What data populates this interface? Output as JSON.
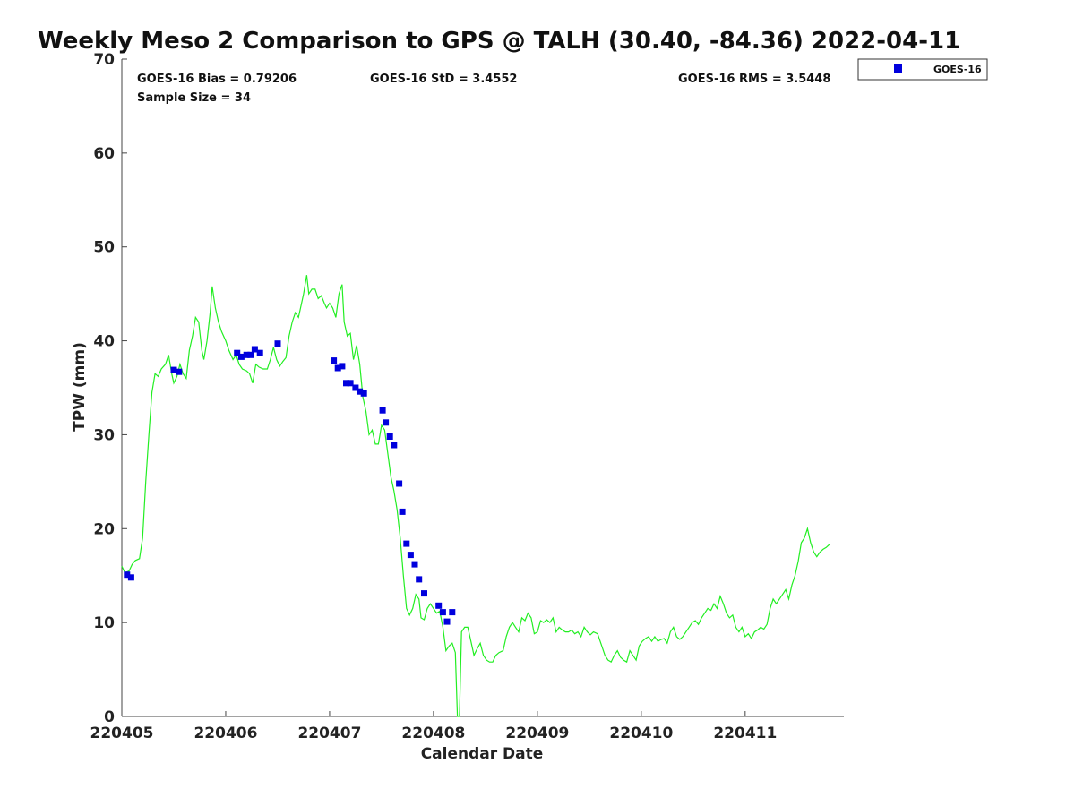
{
  "chart_data": {
    "type": "scatter",
    "title": "Weekly Meso 2 Comparison to GPS @ TALH (30.40, -84.36) 2022-04-11",
    "xlabel": "Calendar Date",
    "ylabel": "TPW (mm)",
    "xlim": [
      220405,
      220411.95
    ],
    "ylim": [
      0,
      70
    ],
    "grid": false,
    "legend_position": "top-right",
    "x_ticks": [
      {
        "value": 220405,
        "label": "220405"
      },
      {
        "value": 220406,
        "label": "220406"
      },
      {
        "value": 220407,
        "label": "220407"
      },
      {
        "value": 220408,
        "label": "220408"
      },
      {
        "value": 220409,
        "label": "220409"
      },
      {
        "value": 220410,
        "label": "220410"
      },
      {
        "value": 220411,
        "label": "220411"
      }
    ],
    "y_ticks": [
      {
        "value": 0,
        "label": "0"
      },
      {
        "value": 10,
        "label": "10"
      },
      {
        "value": 20,
        "label": "20"
      },
      {
        "value": 30,
        "label": "30"
      },
      {
        "value": 40,
        "label": "40"
      },
      {
        "value": 50,
        "label": "50"
      },
      {
        "value": 60,
        "label": "60"
      },
      {
        "value": 70,
        "label": "70"
      }
    ],
    "stats": {
      "bias": "GOES-16 Bias = 0.79206",
      "std": "GOES-16 StD = 3.4552",
      "rms": "GOES-16 RMS = 3.5448",
      "sample_size": "Sample Size = 34"
    },
    "series": [
      {
        "name": "GOES-16",
        "kind": "scatter",
        "marker": "square",
        "color": "#0000dd",
        "points": [
          [
            220405.05,
            15.1
          ],
          [
            220405.09,
            14.8
          ],
          [
            220405.5,
            36.9
          ],
          [
            220405.55,
            36.7
          ],
          [
            220406.11,
            38.7
          ],
          [
            220406.15,
            38.3
          ],
          [
            220406.2,
            38.5
          ],
          [
            220406.24,
            38.5
          ],
          [
            220406.28,
            39.1
          ],
          [
            220406.33,
            38.7
          ],
          [
            220406.5,
            39.7
          ],
          [
            220407.04,
            37.9
          ],
          [
            220407.08,
            37.1
          ],
          [
            220407.12,
            37.3
          ],
          [
            220407.16,
            35.5
          ],
          [
            220407.2,
            35.5
          ],
          [
            220407.25,
            35.0
          ],
          [
            220407.29,
            34.6
          ],
          [
            220407.33,
            34.4
          ],
          [
            220407.51,
            32.6
          ],
          [
            220407.54,
            31.3
          ],
          [
            220407.58,
            29.8
          ],
          [
            220407.62,
            28.9
          ],
          [
            220407.67,
            24.8
          ],
          [
            220407.7,
            21.8
          ],
          [
            220407.74,
            18.4
          ],
          [
            220407.78,
            17.2
          ],
          [
            220407.82,
            16.2
          ],
          [
            220407.86,
            14.6
          ],
          [
            220407.91,
            13.1
          ],
          [
            220408.05,
            11.8
          ],
          [
            220408.09,
            11.1
          ],
          [
            220408.13,
            10.1
          ],
          [
            220408.18,
            11.1
          ]
        ]
      },
      {
        "kind": "line",
        "color": "#22ee22",
        "points": [
          [
            220405.0,
            16.0
          ],
          [
            220405.03,
            15.3
          ],
          [
            220405.07,
            15.5
          ],
          [
            220405.1,
            16.2
          ],
          [
            220405.13,
            16.6
          ],
          [
            220405.17,
            16.8
          ],
          [
            220405.2,
            19.0
          ],
          [
            220405.23,
            25.0
          ],
          [
            220405.26,
            30.0
          ],
          [
            220405.29,
            34.5
          ],
          [
            220405.32,
            36.5
          ],
          [
            220405.35,
            36.2
          ],
          [
            220405.38,
            37.0
          ],
          [
            220405.42,
            37.5
          ],
          [
            220405.45,
            38.5
          ],
          [
            220405.48,
            36.5
          ],
          [
            220405.5,
            35.5
          ],
          [
            220405.53,
            36.2
          ],
          [
            220405.56,
            37.5
          ],
          [
            220405.59,
            36.5
          ],
          [
            220405.62,
            36.0
          ],
          [
            220405.65,
            39.0
          ],
          [
            220405.68,
            40.5
          ],
          [
            220405.71,
            42.5
          ],
          [
            220405.74,
            42.0
          ],
          [
            220405.77,
            39.0
          ],
          [
            220405.79,
            38.0
          ],
          [
            220405.82,
            40.0
          ],
          [
            220405.85,
            43.0
          ],
          [
            220405.87,
            45.8
          ],
          [
            220405.9,
            43.5
          ],
          [
            220405.93,
            42.0
          ],
          [
            220405.96,
            41.0
          ],
          [
            220406.0,
            40.0
          ],
          [
            220406.03,
            39.0
          ],
          [
            220406.07,
            38.0
          ],
          [
            220406.1,
            38.5
          ],
          [
            220406.13,
            37.5
          ],
          [
            220406.16,
            37.0
          ],
          [
            220406.2,
            36.8
          ],
          [
            220406.23,
            36.5
          ],
          [
            220406.26,
            35.5
          ],
          [
            220406.29,
            37.5
          ],
          [
            220406.32,
            37.2
          ],
          [
            220406.36,
            37.0
          ],
          [
            220406.4,
            37.0
          ],
          [
            220406.43,
            38.0
          ],
          [
            220406.46,
            39.3
          ],
          [
            220406.49,
            38.0
          ],
          [
            220406.52,
            37.3
          ],
          [
            220406.55,
            37.8
          ],
          [
            220406.58,
            38.2
          ],
          [
            220406.61,
            40.5
          ],
          [
            220406.64,
            42.0
          ],
          [
            220406.67,
            43.0
          ],
          [
            220406.7,
            42.5
          ],
          [
            220406.72,
            43.5
          ],
          [
            220406.75,
            45.0
          ],
          [
            220406.78,
            47.0
          ],
          [
            220406.8,
            45.0
          ],
          [
            220406.83,
            45.5
          ],
          [
            220406.86,
            45.5
          ],
          [
            220406.89,
            44.5
          ],
          [
            220406.92,
            44.8
          ],
          [
            220406.95,
            44.0
          ],
          [
            220406.97,
            43.5
          ],
          [
            220407.0,
            44.0
          ],
          [
            220407.03,
            43.5
          ],
          [
            220407.06,
            42.5
          ],
          [
            220407.09,
            45.0
          ],
          [
            220407.12,
            46.0
          ],
          [
            220407.14,
            42.0
          ],
          [
            220407.17,
            40.5
          ],
          [
            220407.2,
            40.8
          ],
          [
            220407.23,
            38.0
          ],
          [
            220407.26,
            39.5
          ],
          [
            220407.29,
            37.5
          ],
          [
            220407.32,
            34.0
          ],
          [
            220407.35,
            32.5
          ],
          [
            220407.38,
            30.0
          ],
          [
            220407.41,
            30.5
          ],
          [
            220407.44,
            29.0
          ],
          [
            220407.47,
            29.0
          ],
          [
            220407.5,
            31.0
          ],
          [
            220407.53,
            30.5
          ],
          [
            220407.56,
            28.0
          ],
          [
            220407.59,
            25.5
          ],
          [
            220407.62,
            24.0
          ],
          [
            220407.65,
            22.0
          ],
          [
            220407.68,
            19.0
          ],
          [
            220407.71,
            15.0
          ],
          [
            220407.74,
            11.5
          ],
          [
            220407.77,
            10.8
          ],
          [
            220407.8,
            11.5
          ],
          [
            220407.83,
            13.0
          ],
          [
            220407.86,
            12.5
          ],
          [
            220407.88,
            10.5
          ],
          [
            220407.91,
            10.3
          ],
          [
            220407.94,
            11.5
          ],
          [
            220407.97,
            12.0
          ],
          [
            220408.0,
            11.5
          ],
          [
            220408.03,
            11.0
          ],
          [
            220408.06,
            11.2
          ],
          [
            220408.09,
            9.5
          ],
          [
            220408.12,
            7.0
          ],
          [
            220408.15,
            7.5
          ],
          [
            220408.18,
            7.8
          ],
          [
            220408.21,
            6.8
          ],
          [
            220408.23,
            0.0
          ],
          [
            220408.25,
            0.0
          ],
          [
            220408.27,
            9.0
          ],
          [
            220408.3,
            9.5
          ],
          [
            220408.33,
            9.5
          ],
          [
            220408.36,
            8.0
          ],
          [
            220408.39,
            6.5
          ],
          [
            220408.42,
            7.2
          ],
          [
            220408.45,
            7.8
          ],
          [
            220408.48,
            6.5
          ],
          [
            220408.51,
            6.0
          ],
          [
            220408.54,
            5.8
          ],
          [
            220408.57,
            5.8
          ],
          [
            220408.6,
            6.5
          ],
          [
            220408.63,
            6.8
          ],
          [
            220408.67,
            7.0
          ],
          [
            220408.7,
            8.5
          ],
          [
            220408.73,
            9.5
          ],
          [
            220408.76,
            10.0
          ],
          [
            220408.79,
            9.5
          ],
          [
            220408.82,
            9.0
          ],
          [
            220408.85,
            10.5
          ],
          [
            220408.88,
            10.2
          ],
          [
            220408.91,
            11.0
          ],
          [
            220408.94,
            10.5
          ],
          [
            220408.97,
            8.8
          ],
          [
            220409.0,
            9.0
          ],
          [
            220409.03,
            10.2
          ],
          [
            220409.06,
            10.0
          ],
          [
            220409.09,
            10.3
          ],
          [
            220409.12,
            10.0
          ],
          [
            220409.15,
            10.5
          ],
          [
            220409.18,
            9.0
          ],
          [
            220409.21,
            9.5
          ],
          [
            220409.24,
            9.2
          ],
          [
            220409.27,
            9.0
          ],
          [
            220409.3,
            9.0
          ],
          [
            220409.33,
            9.2
          ],
          [
            220409.36,
            8.8
          ],
          [
            220409.39,
            9.0
          ],
          [
            220409.42,
            8.5
          ],
          [
            220409.45,
            9.5
          ],
          [
            220409.48,
            9.0
          ],
          [
            220409.51,
            8.7
          ],
          [
            220409.54,
            9.0
          ],
          [
            220409.58,
            8.8
          ],
          [
            220409.62,
            7.5
          ],
          [
            220409.65,
            6.5
          ],
          [
            220409.68,
            6.0
          ],
          [
            220409.71,
            5.8
          ],
          [
            220409.74,
            6.5
          ],
          [
            220409.77,
            7.0
          ],
          [
            220409.8,
            6.3
          ],
          [
            220409.83,
            6.0
          ],
          [
            220409.86,
            5.8
          ],
          [
            220409.89,
            7.0
          ],
          [
            220409.92,
            6.5
          ],
          [
            220409.95,
            6.0
          ],
          [
            220409.98,
            7.5
          ],
          [
            220410.01,
            8.0
          ],
          [
            220410.04,
            8.3
          ],
          [
            220410.07,
            8.5
          ],
          [
            220410.1,
            8.0
          ],
          [
            220410.13,
            8.5
          ],
          [
            220410.16,
            8.0
          ],
          [
            220410.19,
            8.2
          ],
          [
            220410.22,
            8.3
          ],
          [
            220410.25,
            7.8
          ],
          [
            220410.28,
            9.0
          ],
          [
            220410.31,
            9.5
          ],
          [
            220410.34,
            8.5
          ],
          [
            220410.37,
            8.2
          ],
          [
            220410.4,
            8.5
          ],
          [
            220410.43,
            9.0
          ],
          [
            220410.46,
            9.5
          ],
          [
            220410.49,
            10.0
          ],
          [
            220410.52,
            10.2
          ],
          [
            220410.55,
            9.8
          ],
          [
            220410.58,
            10.5
          ],
          [
            220410.61,
            11.0
          ],
          [
            220410.64,
            11.5
          ],
          [
            220410.67,
            11.3
          ],
          [
            220410.7,
            12.0
          ],
          [
            220410.73,
            11.5
          ],
          [
            220410.76,
            12.8
          ],
          [
            220410.79,
            12.0
          ],
          [
            220410.82,
            11.0
          ],
          [
            220410.85,
            10.5
          ],
          [
            220410.88,
            10.8
          ],
          [
            220410.91,
            9.5
          ],
          [
            220410.94,
            9.0
          ],
          [
            220410.97,
            9.5
          ],
          [
            220411.0,
            8.5
          ],
          [
            220411.03,
            8.8
          ],
          [
            220411.06,
            8.3
          ],
          [
            220411.09,
            9.0
          ],
          [
            220411.12,
            9.2
          ],
          [
            220411.15,
            9.5
          ],
          [
            220411.18,
            9.3
          ],
          [
            220411.21,
            9.8
          ],
          [
            220411.24,
            11.5
          ],
          [
            220411.27,
            12.5
          ],
          [
            220411.3,
            12.0
          ],
          [
            220411.33,
            12.5
          ],
          [
            220411.36,
            13.0
          ],
          [
            220411.39,
            13.5
          ],
          [
            220411.42,
            12.5
          ],
          [
            220411.45,
            14.0
          ],
          [
            220411.48,
            15.0
          ],
          [
            220411.51,
            16.5
          ],
          [
            220411.54,
            18.5
          ],
          [
            220411.57,
            19.0
          ],
          [
            220411.6,
            20.0
          ],
          [
            220411.63,
            18.5
          ],
          [
            220411.66,
            17.5
          ],
          [
            220411.69,
            17.0
          ],
          [
            220411.72,
            17.5
          ],
          [
            220411.75,
            17.8
          ],
          [
            220411.78,
            18.0
          ],
          [
            220411.81,
            18.3
          ]
        ]
      }
    ]
  }
}
